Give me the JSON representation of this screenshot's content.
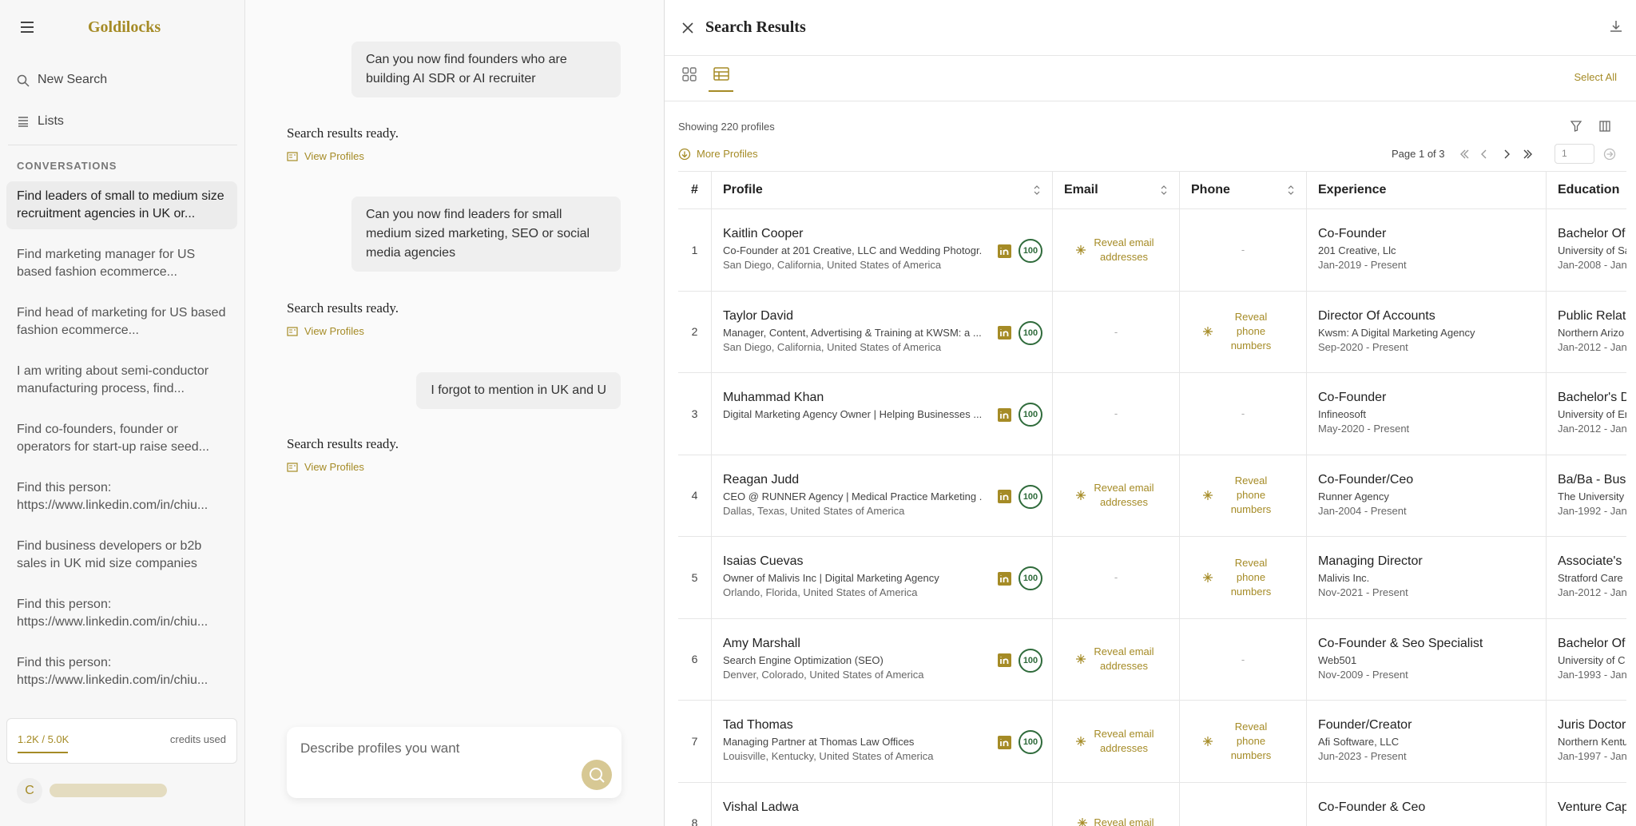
{
  "sidebar": {
    "brand": "Goldilocks",
    "nav": [
      "New Search",
      "Lists"
    ],
    "section_title": "CONVERSATIONS",
    "conversations": [
      "Find leaders of small to medium size recruitment agencies in UK or...",
      "Find marketing manager for US based fashion ecommerce...",
      "Find head of marketing for US based fashion ecommerce...",
      "I am writing about semi-conductor manufacturing process, find...",
      "Find co-founders, founder or operators for start-up raise seed...",
      "Find this person: https://www.linkedin.com/in/chiu...",
      "Find business developers or b2b sales in UK mid size companies",
      "Find this person: https://www.linkedin.com/in/chiu...",
      "Find this person: https://www.linkedin.com/in/chiu..."
    ],
    "credits": "1.2K / 5.0K",
    "credits_label": "credits used",
    "avatar": "C"
  },
  "chat": {
    "messages": [
      {
        "role": "user",
        "text": "Can you now find founders who are building AI SDR or AI recruiter"
      },
      {
        "role": "assistant",
        "text": "Search results ready.",
        "link": "View Profiles"
      },
      {
        "role": "user",
        "text": "Can you now find leaders for small medium sized marketing, SEO or social media agencies"
      },
      {
        "role": "assistant",
        "text": "Search results ready.",
        "link": "View Profiles"
      },
      {
        "role": "user",
        "text": "I forgot to mention in UK and U"
      },
      {
        "role": "assistant",
        "text": "Search results ready.",
        "link": "View Profiles"
      }
    ],
    "input_placeholder": "Describe profiles you want"
  },
  "results": {
    "title": "Search Results",
    "select_all": "Select All",
    "showing": "Showing 220 profiles",
    "more": "More Profiles",
    "page": "Page 1 of 3",
    "page_input": "1",
    "columns": [
      "#",
      "Profile",
      "Email",
      "Phone",
      "Experience",
      "Education"
    ],
    "rows": [
      {
        "num": "1",
        "name": "Kaitlin Cooper",
        "headline": "Co-Founder at 201 Creative, LLC and Wedding Photogr...",
        "location": "San Diego, California, United States of America",
        "score": "100",
        "email": "Reveal email addresses",
        "phone": "-",
        "exp_title": "Co-Founder",
        "exp_company": "201 Creative, Llc",
        "exp_dates": "Jan-2019 - Present",
        "edu_degree": "Bachelor Of Sc",
        "edu_school": "University of Sa",
        "edu_dates": "Jan-2008 - Jan"
      },
      {
        "num": "2",
        "name": "Taylor David",
        "headline": "Manager, Content, Advertising & Training at KWSM: a ...",
        "location": "San Diego, California, United States of America",
        "score": "100",
        "email": "-",
        "phone": "Reveal phone numbers",
        "exp_title": "Director Of Accounts",
        "exp_company": "Kwsm: A Digital Marketing Agency",
        "exp_dates": "Sep-2020 - Present",
        "edu_degree": "Public Relatio",
        "edu_school": "Northern Arizo",
        "edu_dates": "Jan-2012 - Jan"
      },
      {
        "num": "3",
        "name": "Muhammad Khan",
        "headline": "Digital Marketing Agency Owner | Helping Businesses ...",
        "score": "100",
        "email": "-",
        "phone": "-",
        "exp_title": "Co-Founder",
        "exp_company": "Infineosoft",
        "exp_dates": "May-2020 - Present",
        "edu_degree": "Bachelor's D",
        "edu_school": "University of En",
        "edu_dates": "Jan-2012 - Jan"
      },
      {
        "num": "4",
        "name": "Reagan Judd",
        "headline": "CEO @ RUNNER Agency | Medical Practice Marketing ...",
        "location": "Dallas, Texas, United States of America",
        "score": "100",
        "email": "Reveal email addresses",
        "phone": "Reveal phone numbers",
        "exp_title": "Co-Founder/Ceo",
        "exp_company": "Runner Agency",
        "exp_dates": "Jan-2004 - Present",
        "edu_degree": "Ba/Ba - Busi",
        "edu_school": "The University",
        "edu_dates": "Jan-1992 - Jan"
      },
      {
        "num": "5",
        "name": "Isaias Cuevas",
        "headline": "Owner of Malivis Inc | Digital Marketing Agency",
        "location": "Orlando, Florida, United States of America",
        "score": "100",
        "email": "-",
        "phone": "Reveal phone numbers",
        "exp_title": "Managing Director",
        "exp_company": "Malivis Inc.",
        "exp_dates": "Nov-2021 - Present",
        "edu_degree": "Associate's D",
        "edu_school": "Stratford Care",
        "edu_dates": "Jan-2012 - Jan"
      },
      {
        "num": "6",
        "name": "Amy Marshall",
        "headline": "Search Engine Optimization (SEO)",
        "location": "Denver, Colorado, United States of America",
        "score": "100",
        "email": "Reveal email addresses",
        "phone": "-",
        "exp_title": "Co-Founder & Seo Specialist",
        "exp_company": "Web501",
        "exp_dates": "Nov-2009 - Present",
        "edu_degree": "Bachelor Of C",
        "edu_school": "University of C",
        "edu_dates": "Jan-1993 - Jan"
      },
      {
        "num": "7",
        "name": "Tad Thomas",
        "headline": "Managing Partner at Thomas Law Offices",
        "location": "Louisville, Kentucky, United States of America",
        "score": "100",
        "email": "Reveal email addresses",
        "phone": "Reveal phone numbers",
        "exp_title": "Founder/Creator",
        "exp_company": "Afi Software, LLC",
        "exp_dates": "Jun-2023 - Present",
        "edu_degree": "Juris Doctora",
        "edu_school": "Northern Kentu",
        "edu_dates": "Jan-1997 - Jan"
      },
      {
        "num": "8",
        "name": "Vishal Ladwa",
        "email": "Reveal email",
        "exp_title": "Co-Founder & Ceo",
        "edu_degree": "Venture Cap"
      }
    ]
  }
}
